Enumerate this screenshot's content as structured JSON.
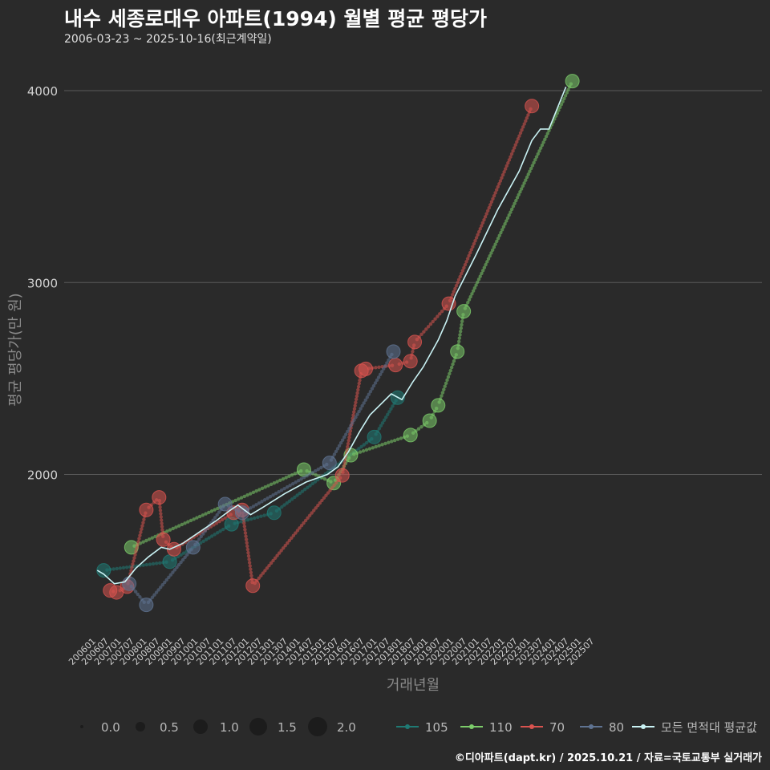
{
  "title": "내수 세종로대우 아파트(1994) 월별 평균 평당가",
  "subtitle": "2006-03-23 ~ 2025-10-16(최근계약일)",
  "caption": "©디아파트(dapt.kr) / 2025.10.21 / 자료=국토교통부 실거래가",
  "colors": {
    "background": "#2a2a2a",
    "grid": "#5a5a5a",
    "s105": "#1f7a74",
    "s110": "#7ccc6a",
    "s70": "#d9534f",
    "s80": "#5f7391",
    "avg": "#c9f2f4"
  },
  "chart_data": {
    "type": "line",
    "title": "내수 세종로대우 아파트(1994) 월별 평균 평당가",
    "xlabel": "거래년월",
    "ylabel": "평균 평당가(만 원)",
    "ylim": [
      1170,
      4180
    ],
    "yticks": [
      2000,
      3000,
      4000
    ],
    "xtick_labels": [
      "200601",
      "200607",
      "200701",
      "200707",
      "200801",
      "200807",
      "200901",
      "200907",
      "201001",
      "201007",
      "201101",
      "201107",
      "201201",
      "201207",
      "201301",
      "201307",
      "201401",
      "201407",
      "201501",
      "201507",
      "201601",
      "201607",
      "201701",
      "201707",
      "201801",
      "201807",
      "201901",
      "201907",
      "202001",
      "202007",
      "202101",
      "202107",
      "202201",
      "202207",
      "202301",
      "202307",
      "202401",
      "202407",
      "202501",
      "202507"
    ],
    "x_unit": "months since 2006-01",
    "size_legend": {
      "title": "",
      "values": [
        "0.0",
        "0.5",
        "1.0",
        "1.5",
        "2.0"
      ]
    },
    "series": [
      {
        "name": "105",
        "colorKey": "s105",
        "points": [
          [
            5,
            1500
          ],
          [
            36,
            1545
          ],
          [
            65,
            1740
          ],
          [
            85,
            1800
          ],
          [
            132,
            2195
          ],
          [
            143,
            2400
          ]
        ]
      },
      {
        "name": "110",
        "colorKey": "s110",
        "points": [
          [
            18,
            1620
          ],
          [
            99,
            2025
          ],
          [
            113,
            1955
          ],
          [
            121,
            2100
          ],
          [
            149,
            2205
          ],
          [
            158,
            2280
          ],
          [
            162,
            2360
          ],
          [
            171,
            2640
          ],
          [
            174,
            2850
          ],
          [
            225,
            4050
          ]
        ]
      },
      {
        "name": "70",
        "colorKey": "s70",
        "points": [
          [
            8,
            1395
          ],
          [
            11,
            1385
          ],
          [
            16,
            1415
          ],
          [
            25,
            1815
          ],
          [
            31,
            1880
          ],
          [
            33,
            1660
          ],
          [
            38,
            1610
          ],
          [
            66,
            1800
          ],
          [
            70,
            1815
          ],
          [
            75,
            1420
          ],
          [
            117,
            1995
          ],
          [
            126,
            2540
          ],
          [
            128,
            2550
          ],
          [
            142,
            2570
          ],
          [
            149,
            2590
          ],
          [
            151,
            2690
          ],
          [
            167,
            2890
          ],
          [
            206,
            3920
          ]
        ]
      },
      {
        "name": "80",
        "colorKey": "s80",
        "points": [
          [
            17,
            1430
          ],
          [
            25,
            1320
          ],
          [
            47,
            1620
          ],
          [
            62,
            1845
          ],
          [
            70,
            1800
          ],
          [
            111,
            2060
          ],
          [
            141,
            2640
          ]
        ]
      },
      {
        "name": "모든 면적대 평균값",
        "colorKey": "avg",
        "points": [
          [
            2,
            1500
          ],
          [
            5,
            1480
          ],
          [
            10,
            1430
          ],
          [
            15,
            1440
          ],
          [
            20,
            1510
          ],
          [
            26,
            1570
          ],
          [
            32,
            1620
          ],
          [
            36,
            1610
          ],
          [
            42,
            1640
          ],
          [
            50,
            1700
          ],
          [
            58,
            1760
          ],
          [
            64,
            1810
          ],
          [
            68,
            1840
          ],
          [
            74,
            1790
          ],
          [
            80,
            1830
          ],
          [
            90,
            1900
          ],
          [
            100,
            1960
          ],
          [
            110,
            2000
          ],
          [
            115,
            2040
          ],
          [
            120,
            2120
          ],
          [
            125,
            2220
          ],
          [
            130,
            2310
          ],
          [
            140,
            2420
          ],
          [
            145,
            2390
          ],
          [
            150,
            2480
          ],
          [
            155,
            2560
          ],
          [
            162,
            2700
          ],
          [
            166,
            2800
          ],
          [
            170,
            2930
          ],
          [
            180,
            3150
          ],
          [
            190,
            3380
          ],
          [
            200,
            3580
          ],
          [
            206,
            3740
          ],
          [
            210,
            3800
          ],
          [
            214,
            3800
          ],
          [
            222,
            4020
          ]
        ]
      }
    ]
  }
}
